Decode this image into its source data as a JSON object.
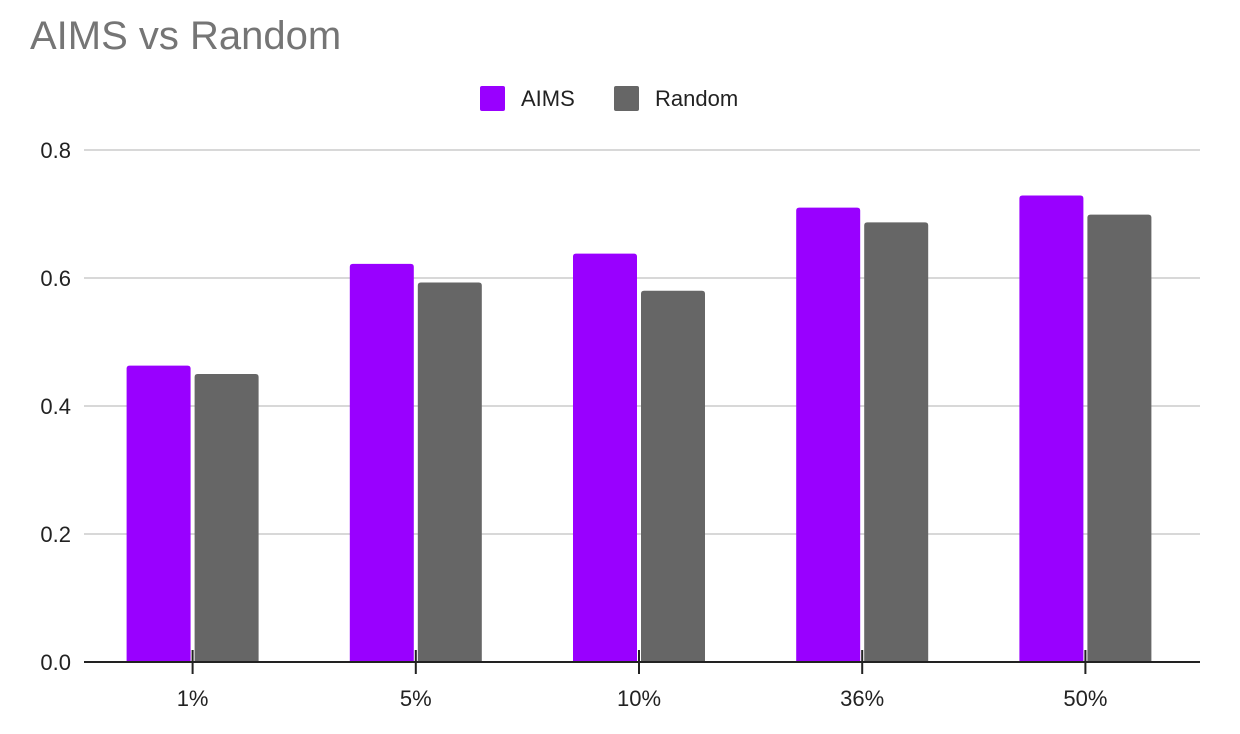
{
  "chart_data": {
    "type": "bar",
    "title": "AIMS vs Random",
    "xlabel": "",
    "ylabel": "",
    "categories": [
      "1%",
      "5%",
      "10%",
      "36%",
      "50%"
    ],
    "series": [
      {
        "name": "AIMS",
        "color": "#9900ff",
        "values": [
          0.463,
          0.622,
          0.638,
          0.71,
          0.729
        ]
      },
      {
        "name": "Random",
        "color": "#666666",
        "values": [
          0.45,
          0.593,
          0.58,
          0.687,
          0.699
        ]
      }
    ],
    "ylim": [
      0,
      0.8
    ],
    "yticks": [
      "0.0",
      "0.2",
      "0.4",
      "0.6",
      "0.8"
    ],
    "ytick_values": [
      0,
      0.2,
      0.4,
      0.6,
      0.8
    ],
    "grid": true,
    "legend_position": "top-center"
  }
}
